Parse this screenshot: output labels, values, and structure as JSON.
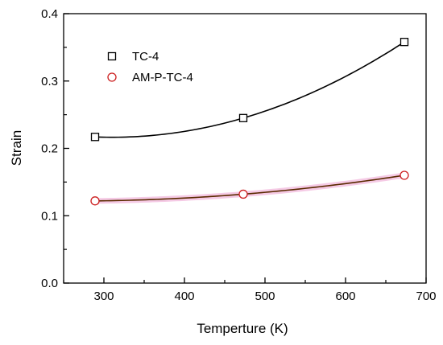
{
  "chart_data": {
    "type": "scatter",
    "title": "",
    "xlabel": "Temperture (K)",
    "ylabel": "Strain",
    "xlim": [
      250,
      700
    ],
    "ylim": [
      0.0,
      0.4
    ],
    "xticks": [
      300,
      400,
      500,
      600,
      700
    ],
    "yticks": [
      0.0,
      0.1,
      0.2,
      0.3,
      0.4
    ],
    "xtick_labels": [
      "300",
      "400",
      "500",
      "600",
      "700"
    ],
    "ytick_labels": [
      "0.0",
      "0.1",
      "0.2",
      "0.3",
      "0.4"
    ],
    "grid": false,
    "legend_position": "top-left",
    "series": [
      {
        "name": "TC-4",
        "marker": "square",
        "color": "#000000",
        "fit_color": "#000000",
        "x": [
          289,
          473,
          673
        ],
        "y": [
          0.217,
          0.245,
          0.358
        ]
      },
      {
        "name": "AM-P-TC-4",
        "marker": "circle",
        "color": "#cc1f1f",
        "fit_color": "#5a2a00",
        "fit_glow_color": "#f2b8dc",
        "x": [
          289,
          473,
          673
        ],
        "y": [
          0.122,
          0.132,
          0.16
        ]
      }
    ]
  }
}
